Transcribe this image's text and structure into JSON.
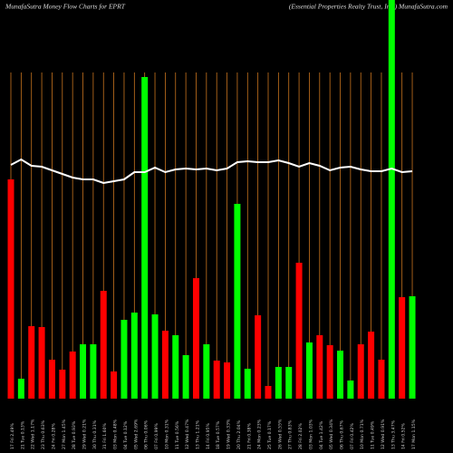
{
  "chart_data": {
    "type": "bar",
    "title": "MunafaSutra  Money Flow  Charts for EPRT",
    "subtitle": "(Essential Properties Realty Trust,  Inc.) MunafaSutra.com",
    "categories": [
      "17 Fri 2.49%",
      "21 Tue 0.13%",
      "22 Wed 1.17%",
      "23 Thu 0.63%",
      "24 Fri 0.28%",
      "27 Mon 1.45%",
      "28 Tue 0.93%",
      "29 Wed 0.21%",
      "30 Thu 0.31%",
      "31 Fri 1.60%",
      "03 Mon 0.48%",
      "04 Tue 0.12%",
      "05 Wed 2.69%",
      "06 Thu 0.06%",
      "07 Fri 0.99%",
      "10 Mon 0.31%",
      "11 Tue 0.56%",
      "12 Wed 0.47%",
      "13 Thu 1.21%",
      "14 Fri 0.95%",
      "18 Tue 0.57%",
      "19 Wed 0.33%",
      "20 Thu 2.04%",
      "21 Fri 0.38%",
      "24 Mon 0.23%",
      "25 Tue 0.17%",
      "26 Wed 0.55%",
      "27 Thu 0.83%",
      "28 Fri 2.02%",
      "03 Mon 1.03%",
      "04 Tue 1.42%",
      "05 Wed 0.34%",
      "06 Thu 0.67%",
      "07 Fri 0.42%",
      "10 Mon 0.71%",
      "11 Tue 0.49%",
      "12 Wed 0.91%",
      "13 Thu 3.47%",
      "14 Fri 0.52%",
      "17 Mon 1.15%"
    ],
    "values": [
      242,
      22,
      80,
      79,
      43,
      32,
      52,
      60,
      60,
      119,
      30,
      87,
      95,
      355,
      93,
      75,
      70,
      48,
      133,
      60,
      42,
      40,
      215,
      33,
      92,
      14,
      35,
      35,
      150,
      62,
      70,
      59,
      53,
      20,
      60,
      74,
      43,
      440,
      112,
      113
    ],
    "colors": [
      "#ff0000",
      "#00ff00",
      "#ff0000",
      "#ff0000",
      "#ff0000",
      "#ff0000",
      "#ff0000",
      "#00ff00",
      "#00ff00",
      "#ff0000",
      "#ff0000",
      "#00ff00",
      "#00ff00",
      "#00ff00",
      "#00ff00",
      "#ff0000",
      "#00ff00",
      "#00ff00",
      "#ff0000",
      "#00ff00",
      "#ff0000",
      "#ff0000",
      "#00ff00",
      "#00ff00",
      "#ff0000",
      "#ff0000",
      "#00ff00",
      "#00ff00",
      "#ff0000",
      "#00ff00",
      "#ff0000",
      "#ff0000",
      "#00ff00",
      "#00ff00",
      "#ff0000",
      "#ff0000",
      "#ff0000",
      "#00ff00",
      "#ff0000",
      "#00ff00"
    ],
    "line": {
      "color": "#ffffff",
      "values": [
        258,
        264,
        257,
        256,
        252,
        248,
        244,
        242,
        242,
        238,
        240,
        242,
        250,
        250,
        255,
        250,
        253,
        254,
        253,
        254,
        252,
        254,
        261,
        262,
        261,
        261,
        263,
        260,
        256,
        260,
        257,
        252,
        255,
        256,
        253,
        251,
        251,
        254,
        250,
        251
      ]
    },
    "grid_color": "#c8741e",
    "ylim": [
      0,
      440
    ]
  }
}
